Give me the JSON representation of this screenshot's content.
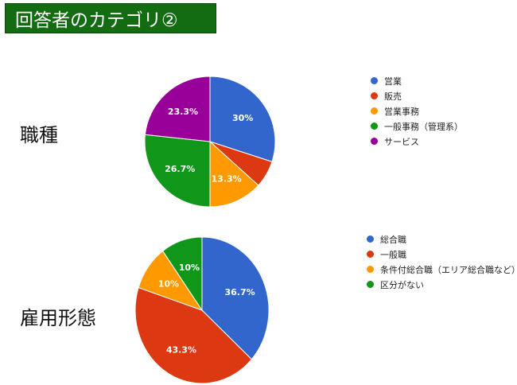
{
  "header": {
    "title": "回答者のカテゴリ②"
  },
  "charts_meta": [
    {
      "label": "職種"
    },
    {
      "label": "雇用形態"
    }
  ],
  "chart_data": [
    {
      "type": "pie",
      "categories": [
        "営業",
        "販売",
        "営業事務",
        "一般事務（管理系）",
        "サービス"
      ],
      "values": [
        30,
        6.7,
        13.3,
        26.7,
        23.3
      ],
      "data_labels": [
        "30%",
        "",
        "13.3%",
        "26.7%",
        "23.3%"
      ],
      "colors": [
        "#3366cc",
        "#dc3912",
        "#ff9900",
        "#109618",
        "#990099"
      ],
      "legend_position": "right"
    },
    {
      "type": "pie",
      "categories": [
        "総合職",
        "一般職",
        "条件付総合職（エリア総合職など）",
        "区分がない"
      ],
      "values": [
        36.7,
        43.3,
        10,
        10
      ],
      "data_labels": [
        "36.7%",
        "43.3%",
        "10%",
        "10%"
      ],
      "colors": [
        "#3366cc",
        "#dc3912",
        "#ff9900",
        "#109618"
      ],
      "legend_position": "right"
    }
  ]
}
